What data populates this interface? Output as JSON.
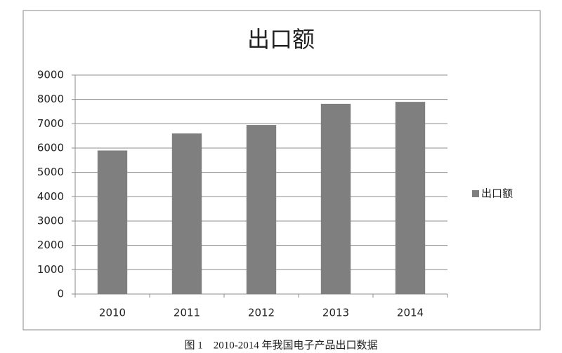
{
  "chart_data": {
    "type": "bar",
    "title": "出口额",
    "categories": [
      "2010",
      "2011",
      "2012",
      "2013",
      "2014"
    ],
    "series": [
      {
        "name": "出口额",
        "color": "#7f7f7f",
        "values": [
          5900,
          6600,
          6950,
          7820,
          7900
        ]
      }
    ],
    "ylim": [
      0,
      9000
    ],
    "yticks": [
      0,
      1000,
      2000,
      3000,
      4000,
      5000,
      6000,
      7000,
      8000,
      9000
    ],
    "grid": true,
    "legend": "right",
    "caption": "图 1　2010-2014 年我国电子产品出口数据"
  }
}
